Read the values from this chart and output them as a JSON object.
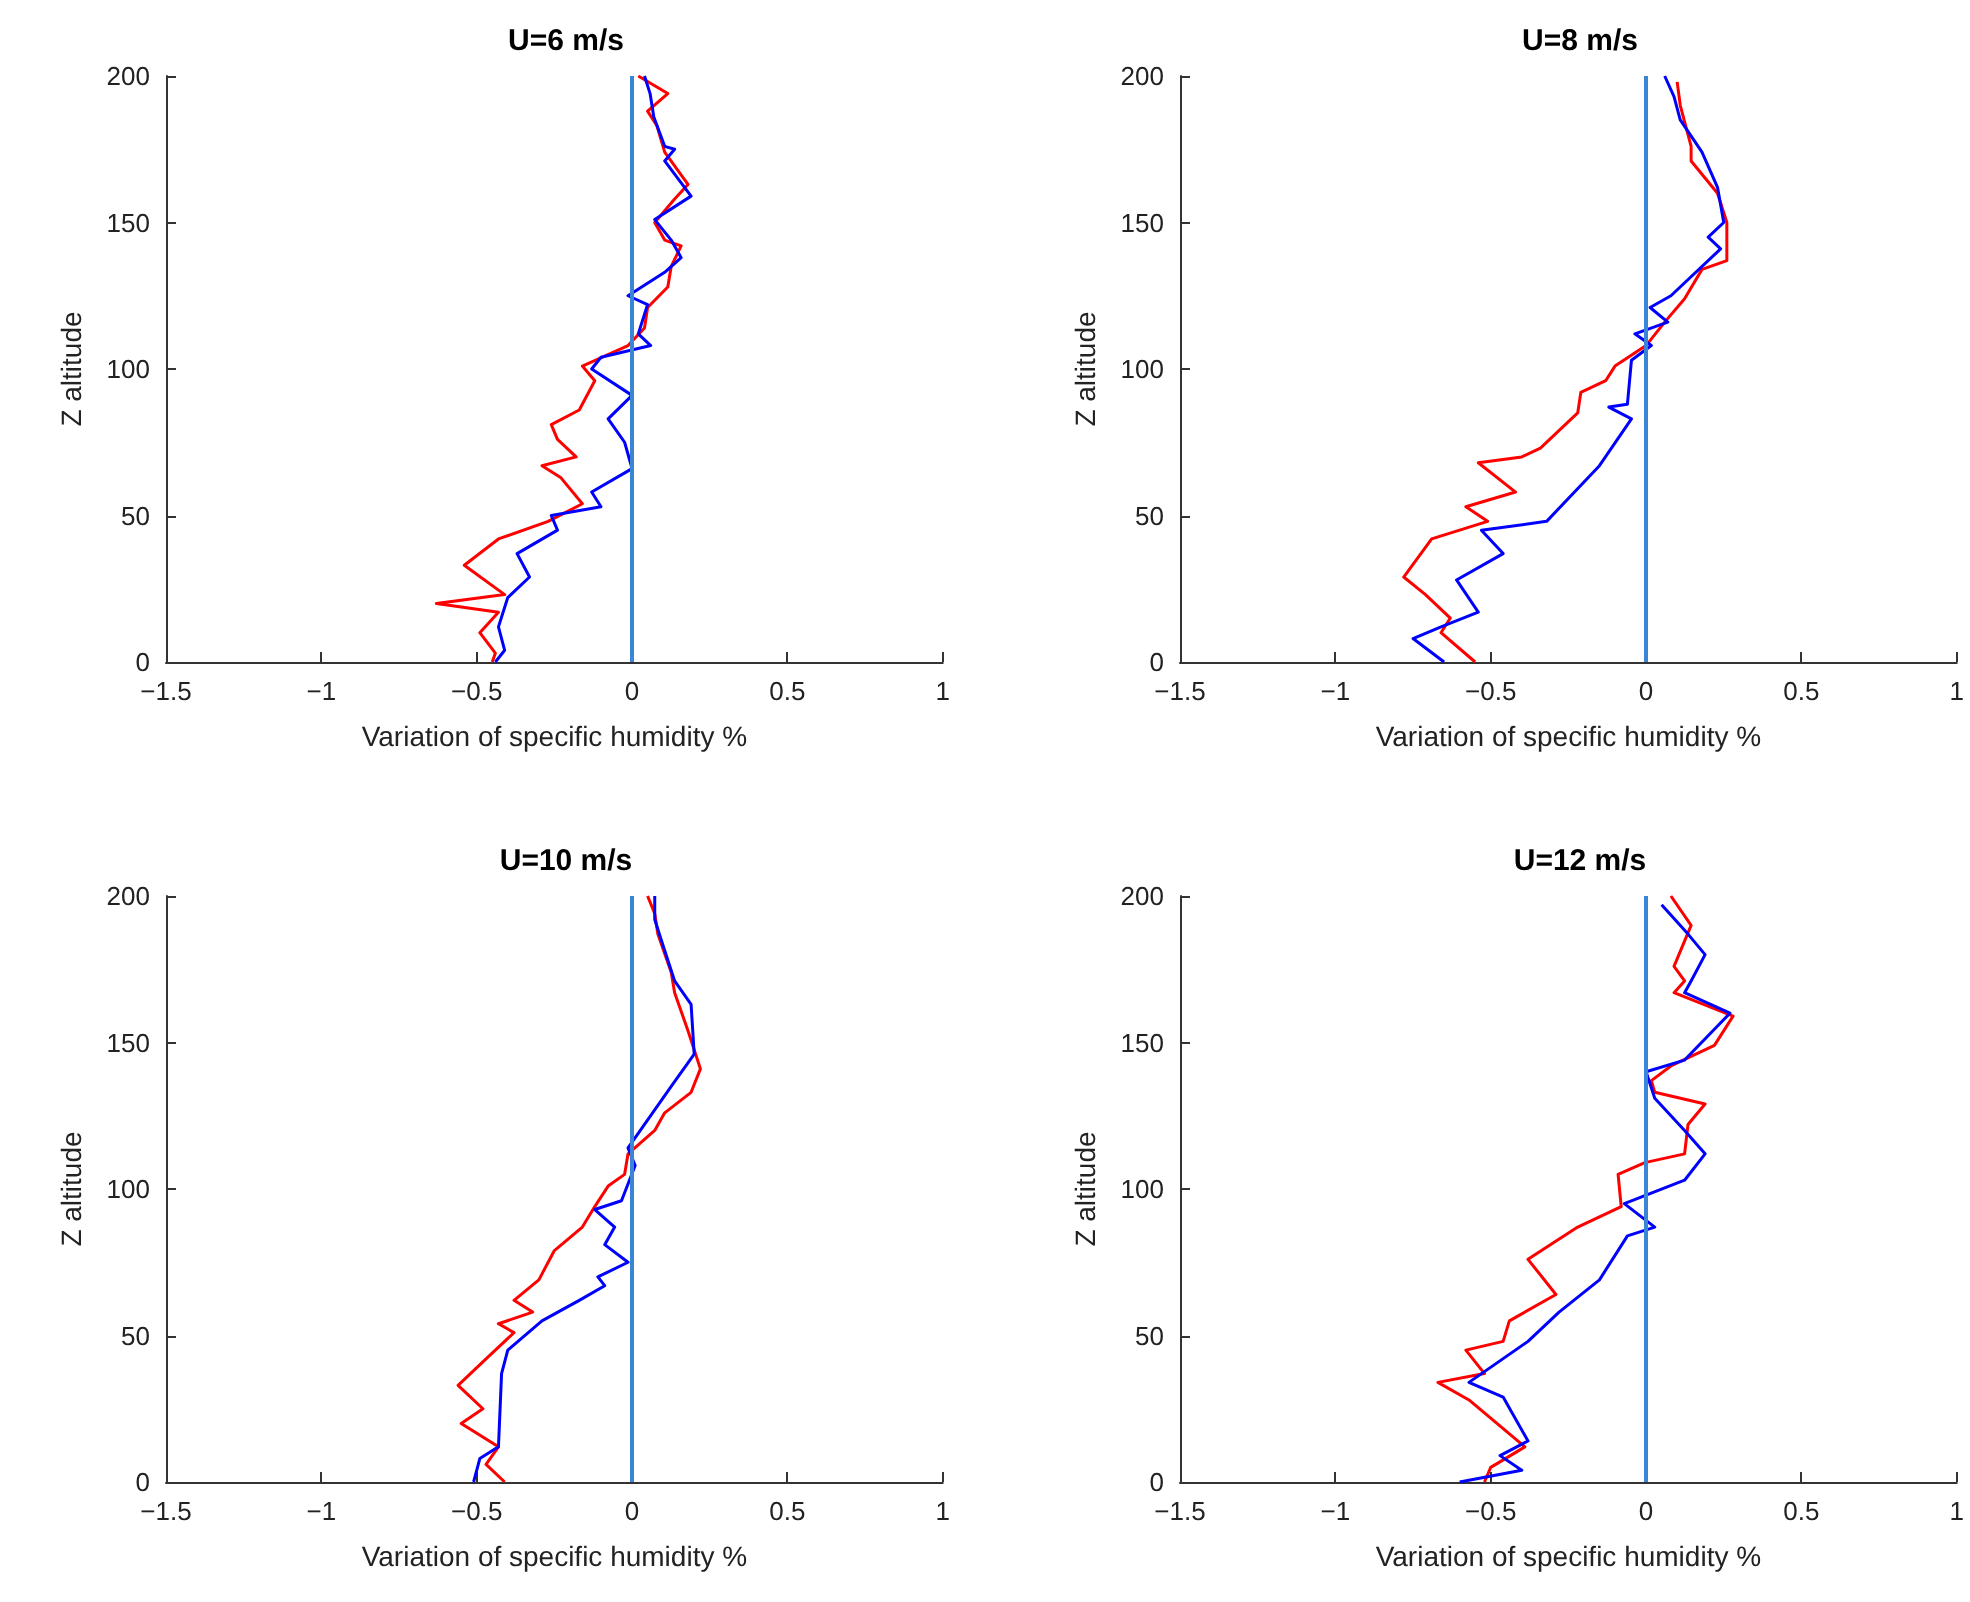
{
  "chart_data": [
    {
      "type": "line",
      "title": "U=6 m/s",
      "xlabel": "Variation of specific humidity %",
      "ylabel": "Z altitude",
      "xlim": [
        -1.5,
        1
      ],
      "xticks": [
        -1.5,
        -1,
        -0.5,
        0,
        0.5,
        1
      ],
      "ylim": [
        0,
        200
      ],
      "yticks": [
        0,
        50,
        100,
        150,
        200
      ],
      "grid": false,
      "marker": "none",
      "ref_lines": [
        {
          "axis": "x",
          "value": 0,
          "color": "#3a86d4"
        }
      ],
      "series": [
        {
          "color": "#ff0000",
          "x": [
            0.02,
            0.115,
            0.05,
            0.08,
            0.105,
            0.18,
            0.137,
            0.073,
            0.105,
            0.158,
            0.126,
            0.115,
            0.05,
            0.04,
            -0.013,
            -0.16,
            -0.12,
            -0.17,
            -0.26,
            -0.24,
            -0.18,
            -0.29,
            -0.23,
            -0.16,
            -0.27,
            -0.43,
            -0.54,
            -0.41,
            -0.63,
            -0.43,
            -0.49,
            -0.44,
            -0.45
          ],
          "values": [
            200,
            194,
            188,
            183,
            174,
            163,
            158,
            150,
            144,
            142,
            135,
            128,
            121,
            114,
            108,
            101,
            96,
            86,
            81,
            76,
            70,
            67,
            63,
            54,
            48,
            42,
            33,
            23,
            20,
            17,
            10,
            3,
            0
          ]
        },
        {
          "color": "#0000ff",
          "x": [
            0.04,
            0.058,
            0.07,
            0.105,
            0.137,
            0.105,
            0.19,
            0.073,
            0.126,
            0.158,
            0.105,
            -0.013,
            0.05,
            0.02,
            0.06,
            -0.1,
            -0.13,
            0,
            -0.077,
            -0.024,
            0,
            -0.13,
            -0.1,
            -0.26,
            -0.24,
            -0.37,
            -0.33,
            -0.4,
            -0.43,
            -0.41,
            -0.44
          ],
          "values": [
            200,
            194,
            186,
            176,
            175,
            171,
            159,
            151,
            144,
            138,
            133,
            125,
            122,
            112,
            108,
            104,
            100,
            91,
            83,
            75,
            66,
            58,
            53,
            50,
            45,
            37,
            29,
            22,
            12,
            4,
            0
          ]
        }
      ]
    },
    {
      "type": "line",
      "title": "U=8 m/s",
      "xlabel": "Variation of specific humidity %",
      "ylabel": "Z altitude",
      "xlim": [
        -1.5,
        1
      ],
      "xticks": [
        -1.5,
        -1,
        -0.5,
        0,
        0.5,
        1
      ],
      "ylim": [
        0,
        200
      ],
      "yticks": [
        0,
        50,
        100,
        150,
        200
      ],
      "grid": false,
      "marker": "none",
      "ref_lines": [
        {
          "axis": "x",
          "value": 0,
          "color": "#3a86d4"
        }
      ],
      "series": [
        {
          "color": "#ff0000",
          "x": [
            0.1,
            0.11,
            0.145,
            0.145,
            0.23,
            0.26,
            0.26,
            0.18,
            0.124,
            0.06,
            0,
            -0.1,
            -0.13,
            -0.21,
            -0.22,
            -0.34,
            -0.4,
            -0.54,
            -0.42,
            -0.58,
            -0.51,
            -0.69,
            -0.78,
            -0.71,
            -0.63,
            -0.66,
            -0.55
          ],
          "values": [
            198,
            190,
            176,
            171,
            160,
            150,
            137,
            134,
            124,
            116,
            108,
            101,
            96,
            92,
            85,
            73,
            70,
            68,
            58,
            53,
            48,
            42,
            29,
            23,
            15,
            10,
            0
          ]
        },
        {
          "color": "#0000ff",
          "x": [
            0.06,
            0.09,
            0.11,
            0.18,
            0.23,
            0.25,
            0.2,
            0.24,
            0.08,
            0.013,
            0.07,
            -0.036,
            0.017,
            -0.047,
            -0.06,
            -0.12,
            -0.047,
            -0.15,
            -0.32,
            -0.53,
            -0.46,
            -0.61,
            -0.54,
            -0.66,
            -0.75,
            -0.65
          ],
          "values": [
            200,
            193,
            185,
            174,
            162,
            150,
            145,
            141,
            125,
            121,
            116,
            112,
            108,
            103,
            88,
            87,
            83,
            67,
            48,
            45,
            37,
            28,
            17,
            12,
            8,
            0
          ]
        }
      ]
    },
    {
      "type": "line",
      "title": "U=10 m/s",
      "xlabel": "Variation of specific humidity %",
      "ylabel": "Z altitude",
      "xlim": [
        -1.5,
        1
      ],
      "xticks": [
        -1.5,
        -1,
        -0.5,
        0,
        0.5,
        1
      ],
      "ylim": [
        0,
        200
      ],
      "yticks": [
        0,
        50,
        100,
        150,
        200
      ],
      "grid": false,
      "marker": "none",
      "ref_lines": [
        {
          "axis": "x",
          "value": 0,
          "color": "#3a86d4"
        }
      ],
      "series": [
        {
          "color": "#ff0000",
          "x": [
            0.05,
            0.073,
            0.083,
            0.126,
            0.137,
            0.18,
            0.22,
            0.19,
            0.105,
            0.073,
            -0.013,
            -0.024,
            -0.077,
            -0.12,
            -0.16,
            -0.25,
            -0.3,
            -0.38,
            -0.32,
            -0.43,
            -0.38,
            -0.47,
            -0.56,
            -0.48,
            -0.55,
            -0.43,
            -0.47,
            -0.41
          ],
          "values": [
            200,
            194,
            187,
            174,
            167,
            154,
            141,
            133,
            126,
            120,
            112,
            105,
            101,
            94,
            87,
            79,
            69,
            62,
            58,
            54,
            51,
            42,
            33,
            25,
            20,
            12,
            6,
            0
          ]
        },
        {
          "color": "#0000ff",
          "x": [
            0.073,
            0.073,
            0.094,
            0.137,
            0.19,
            0.2,
            0.126,
            -0.013,
            0.01,
            -0.034,
            -0.12,
            -0.056,
            -0.088,
            -0.013,
            -0.11,
            -0.088,
            -0.17,
            -0.29,
            -0.4,
            -0.42,
            -0.43,
            -0.49,
            -0.51
          ],
          "values": [
            200,
            192,
            185,
            171,
            163,
            146,
            135,
            114,
            108,
            96,
            93,
            87,
            81,
            75,
            70,
            67,
            62,
            55,
            45,
            37,
            12,
            8,
            0
          ]
        }
      ]
    },
    {
      "type": "line",
      "title": "U=12 m/s",
      "xlabel": "Variation of specific humidity %",
      "ylabel": "Z altitude",
      "xlim": [
        -1.5,
        1
      ],
      "xticks": [
        -1.5,
        -1,
        -0.5,
        0,
        0.5,
        1
      ],
      "ylim": [
        0,
        200
      ],
      "yticks": [
        0,
        50,
        100,
        150,
        200
      ],
      "grid": false,
      "marker": "none",
      "ref_lines": [
        {
          "axis": "x",
          "value": 0,
          "color": "#3a86d4"
        }
      ],
      "series": [
        {
          "color": "#ff0000",
          "x": [
            0.08,
            0.145,
            0.09,
            0.124,
            0.09,
            0.28,
            0.22,
            0.08,
            0.017,
            0.028,
            0.19,
            0.135,
            0.124,
            -0.004,
            -0.09,
            -0.08,
            -0.22,
            -0.38,
            -0.29,
            -0.44,
            -0.46,
            -0.58,
            -0.52,
            -0.67,
            -0.57,
            -0.39,
            -0.5,
            -0.52
          ],
          "values": [
            200,
            190,
            176,
            171,
            167,
            159,
            149,
            142,
            137,
            133,
            129,
            122,
            112,
            109,
            105,
            94,
            87,
            76,
            64,
            55,
            48,
            45,
            37,
            34,
            28,
            12,
            5,
            0
          ]
        },
        {
          "color": "#0000ff",
          "x": [
            0.05,
            0.135,
            0.19,
            0.145,
            0.124,
            0.27,
            0.124,
            0,
            0.028,
            0.124,
            0.19,
            0.124,
            -0.07,
            0.028,
            -0.06,
            -0.15,
            -0.28,
            -0.38,
            -0.57,
            -0.46,
            -0.38,
            -0.47,
            -0.4,
            -0.6
          ],
          "values": [
            197,
            187,
            180,
            171,
            167,
            160,
            144,
            140,
            131,
            120,
            112,
            103,
            95,
            87,
            84,
            69,
            58,
            48,
            34,
            29,
            14,
            9,
            4,
            0
          ]
        }
      ]
    }
  ]
}
